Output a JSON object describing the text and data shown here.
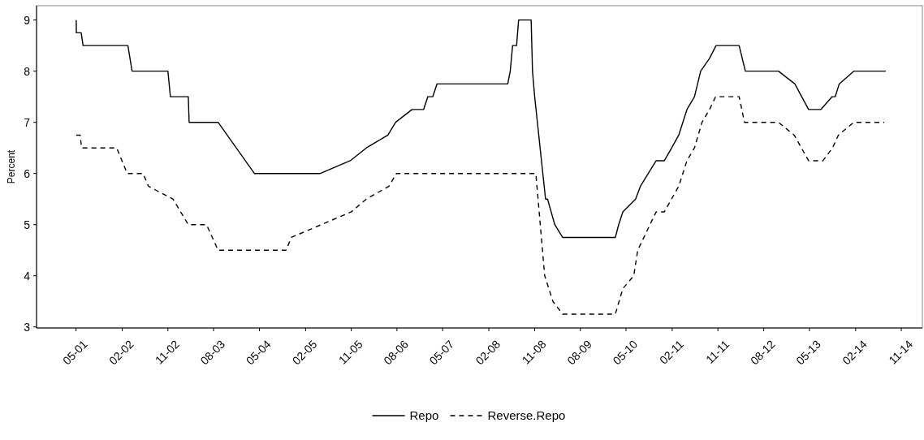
{
  "chart_data": {
    "type": "line",
    "ylabel": "Percent",
    "xlim": [
      "2000-09-07",
      "2015-03-07"
    ],
    "ylim": [
      2.98,
      9.28
    ],
    "yticks": [
      3,
      4,
      5,
      6,
      7,
      8,
      9
    ],
    "xticks": [
      {
        "value": "2001-05-01",
        "label": "05-01"
      },
      {
        "value": "2002-02-01",
        "label": "02-02"
      },
      {
        "value": "2002-11-01",
        "label": "11-02"
      },
      {
        "value": "2003-08-01",
        "label": "08-03"
      },
      {
        "value": "2004-05-01",
        "label": "05-04"
      },
      {
        "value": "2005-02-01",
        "label": "02-05"
      },
      {
        "value": "2005-11-01",
        "label": "11-05"
      },
      {
        "value": "2006-08-01",
        "label": "08-06"
      },
      {
        "value": "2007-05-01",
        "label": "05-07"
      },
      {
        "value": "2008-02-01",
        "label": "02-08"
      },
      {
        "value": "2008-11-01",
        "label": "11-08"
      },
      {
        "value": "2009-08-01",
        "label": "08-09"
      },
      {
        "value": "2010-05-01",
        "label": "05-10"
      },
      {
        "value": "2011-02-01",
        "label": "02-11"
      },
      {
        "value": "2011-11-01",
        "label": "11-11"
      },
      {
        "value": "2012-08-01",
        "label": "08-12"
      },
      {
        "value": "2013-05-01",
        "label": "05-13"
      },
      {
        "value": "2014-02-01",
        "label": "02-14"
      },
      {
        "value": "2014-11-01",
        "label": "11-14"
      }
    ],
    "grid": false,
    "legend": "bottom",
    "series": [
      {
        "name": "Repo",
        "color": "#000000",
        "line_style": "solid",
        "x": [
          "2001-05-02",
          "2001-05-03",
          "2001-06-01",
          "2001-06-12",
          "2002-03-07",
          "2002-04-01",
          "2002-11-01",
          "2002-11-16",
          "2003-03-03",
          "2003-03-08",
          "2003-08-28",
          "2004-04-01",
          "2005-04-30",
          "2005-10-26",
          "2006-01-30",
          "2006-06-08",
          "2006-07-24",
          "2006-10-30",
          "2007-01-07",
          "2007-02-01",
          "2007-03-03",
          "2007-03-28",
          "2008-05-24",
          "2008-06-08",
          "2008-06-22",
          "2008-07-16",
          "2008-07-28",
          "2008-10-11",
          "2008-10-19",
          "2008-11-01",
          "2009-01-05",
          "2009-01-17",
          "2009-03-01",
          "2009-04-17",
          "2010-02-26",
          "2010-03-18",
          "2010-04-12",
          "2010-06-27",
          "2010-07-26",
          "2010-10-28",
          "2010-12-16",
          "2011-01-29",
          "2011-03-12",
          "2011-04-30",
          "2011-06-14",
          "2011-07-21",
          "2011-09-12",
          "2011-10-21",
          "2012-03-07",
          "2012-04-13",
          "2012-10-28",
          "2013-02-03",
          "2013-04-26",
          "2013-07-08",
          "2013-09-13",
          "2013-10-02",
          "2013-10-26",
          "2014-01-21",
          "2014-08-01"
        ],
        "values": [
          9,
          8.75,
          8.75,
          8.5,
          8.5,
          8,
          8,
          7.5,
          7.5,
          7,
          7,
          6,
          6,
          6.25,
          6.5,
          6.75,
          7,
          7.25,
          7.25,
          7.5,
          7.5,
          7.75,
          7.75,
          8,
          8.5,
          8.5,
          9,
          9,
          8,
          7.5,
          5.5,
          5.5,
          5,
          4.75,
          4.75,
          5,
          5.25,
          5.5,
          5.75,
          6.25,
          6.25,
          6.5,
          6.75,
          7.25,
          7.5,
          8,
          8.25,
          8.5,
          8.5,
          8,
          8,
          7.75,
          7.25,
          7.25,
          7.5,
          7.5,
          7.75,
          8,
          8
        ]
      },
      {
        "name": "Reverse.Repo",
        "color": "#000000",
        "line_style": "dashed",
        "x": [
          "2001-05-02",
          "2001-05-26",
          "2001-06-03",
          "2001-12-30",
          "2002-03-03",
          "2002-06-06",
          "2002-07-08",
          "2002-12-01",
          "2003-03-03",
          "2003-06-20",
          "2003-08-28",
          "2004-10-07",
          "2004-11-08",
          "2005-11-01",
          "2006-01-30",
          "2006-06-14",
          "2006-07-29",
          "2008-11-08",
          "2008-12-31",
          "2009-02-18",
          "2009-04-17",
          "2010-02-26",
          "2010-04-12",
          "2010-06-16",
          "2010-07-10",
          "2010-09-21",
          "2010-10-28",
          "2010-12-16",
          "2011-03-12",
          "2011-04-30",
          "2011-06-14",
          "2011-07-29",
          "2011-09-12",
          "2011-10-18",
          "2012-03-07",
          "2012-04-08",
          "2012-10-28",
          "2013-01-30",
          "2013-04-26",
          "2013-07-21",
          "2013-09-16",
          "2013-10-21",
          "2014-01-21",
          "2014-07-22"
        ],
        "values": [
          6.75,
          6.75,
          6.5,
          6.5,
          6,
          6,
          5.75,
          5.5,
          5,
          5,
          4.5,
          4.5,
          4.75,
          5.25,
          5.5,
          5.75,
          6,
          6,
          4,
          3.5,
          3.25,
          3.25,
          3.75,
          4,
          4.5,
          5,
          5.25,
          5.25,
          5.75,
          6.25,
          6.5,
          7,
          7.25,
          7.5,
          7.5,
          7,
          7,
          6.75,
          6.25,
          6.25,
          6.5,
          6.75,
          7,
          7
        ]
      }
    ]
  }
}
